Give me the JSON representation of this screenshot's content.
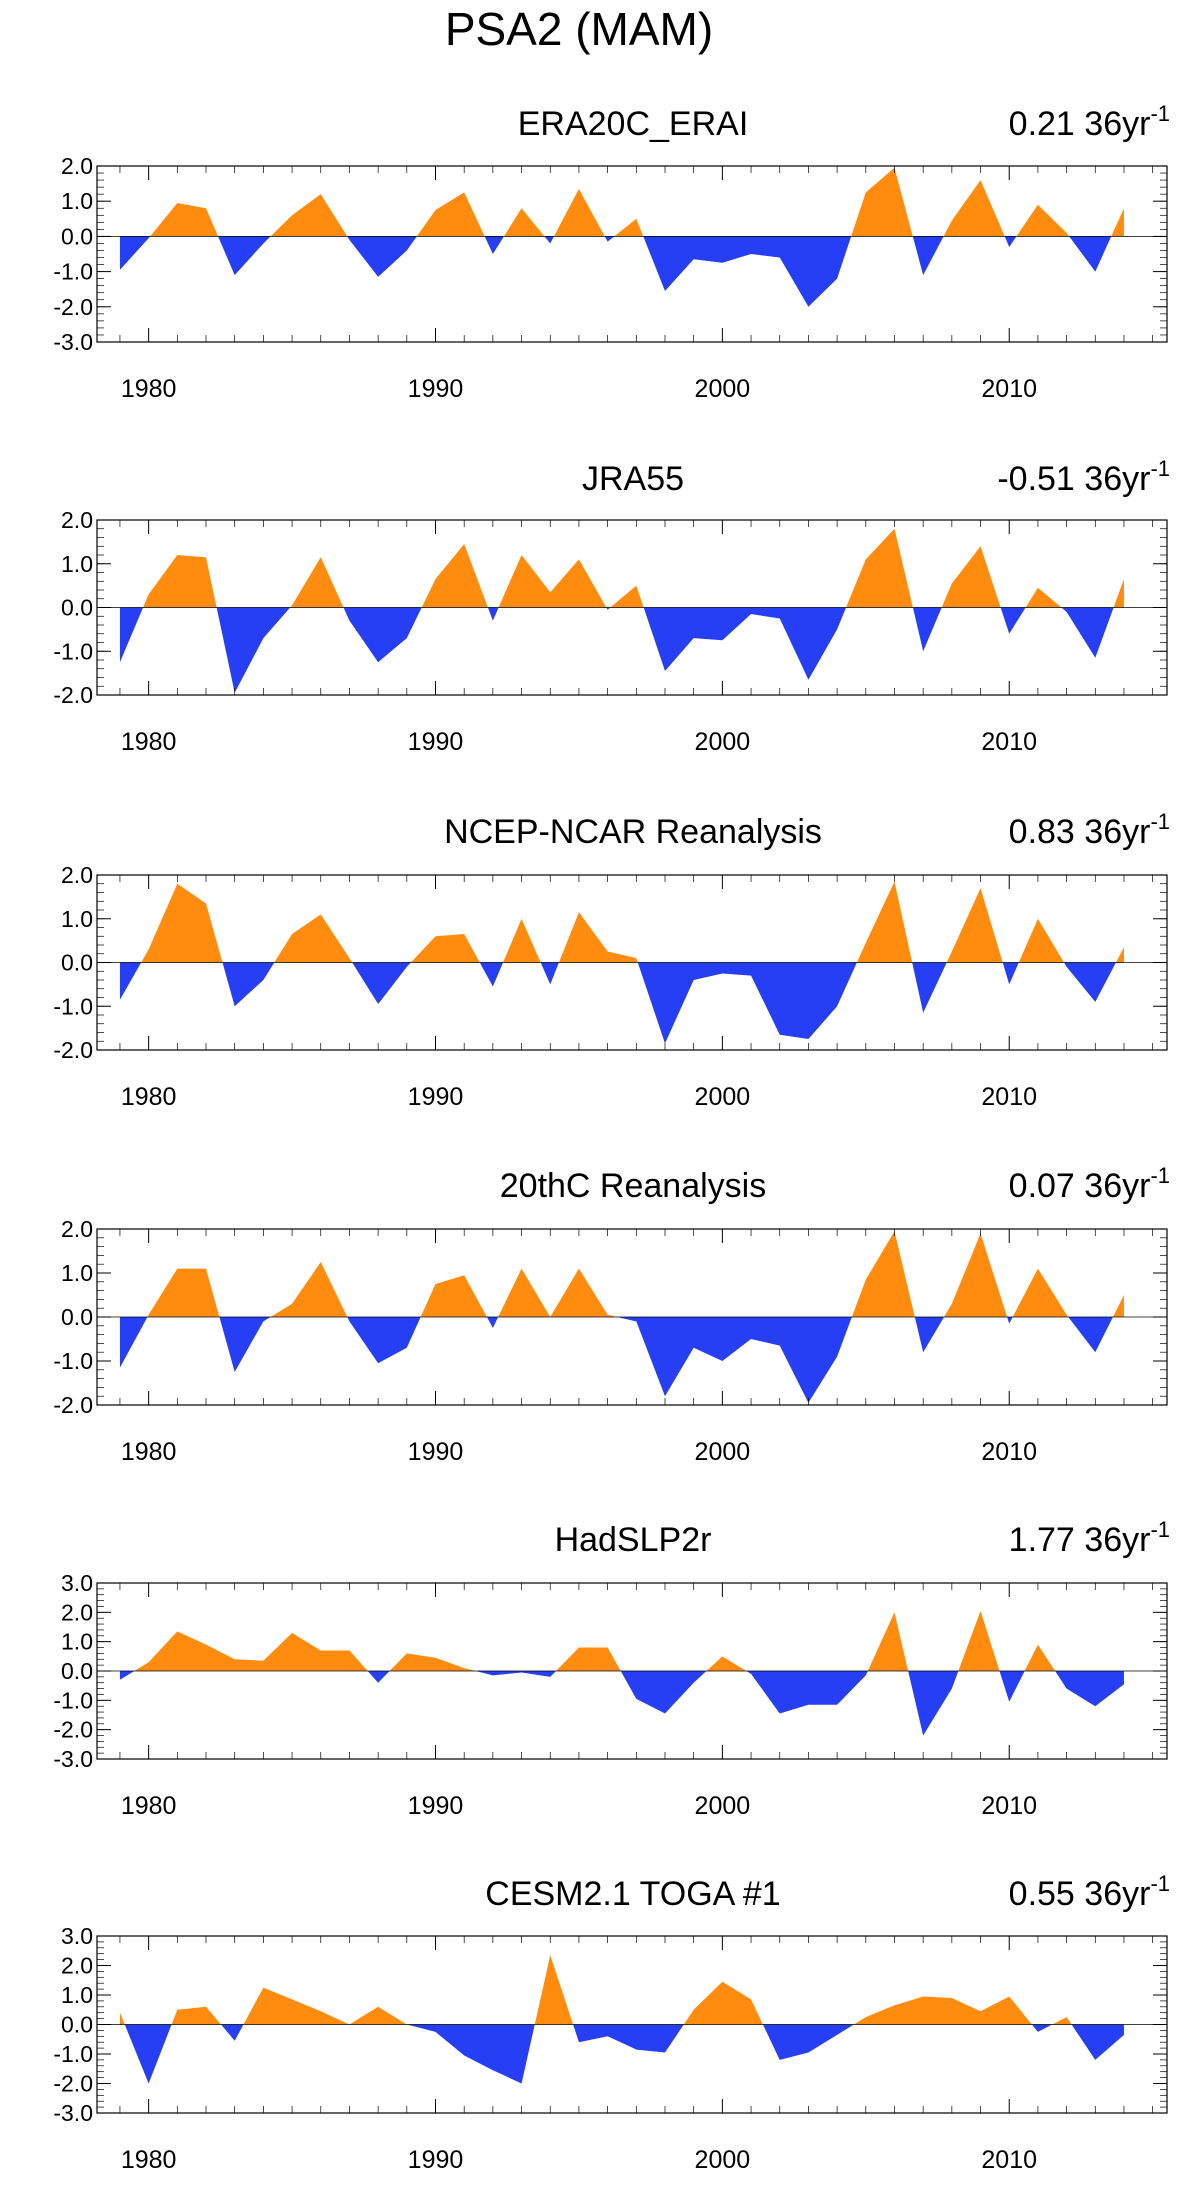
{
  "title": "PSA2 (MAM)",
  "colors": {
    "positive": "#ff8c0f",
    "negative": "#263ff5",
    "axis": "#000000"
  },
  "chart_data": [
    {
      "type": "area",
      "title": "ERA20C_ERAI",
      "trend_value": "0.21 36yr",
      "trend_exponent": "-1",
      "x": [
        1979,
        1980,
        1981,
        1982,
        1983,
        1984,
        1985,
        1986,
        1987,
        1988,
        1989,
        1990,
        1991,
        1992,
        1993,
        1994,
        1995,
        1996,
        1997,
        1998,
        1999,
        2000,
        2001,
        2002,
        2003,
        2004,
        2005,
        2006,
        2007,
        2008,
        2009,
        2010,
        2011,
        2012,
        2013,
        2014
      ],
      "values": [
        -0.95,
        -0.05,
        0.95,
        0.8,
        -1.1,
        -0.2,
        0.6,
        1.2,
        -0.1,
        -1.15,
        -0.4,
        0.75,
        1.25,
        -0.5,
        0.8,
        -0.2,
        1.35,
        -0.15,
        0.5,
        -1.55,
        -0.65,
        -0.75,
        -0.5,
        -0.6,
        -2.0,
        -1.2,
        1.25,
        1.95,
        -1.1,
        0.45,
        1.6,
        -0.3,
        0.9,
        0.1,
        -1.0,
        0.8
      ],
      "ylim": [
        -3,
        2
      ],
      "yticks": [
        "2.0",
        "1.0",
        "0.0",
        "-1.0",
        "-2.0",
        "-3.0"
      ],
      "xticks": [
        "1980",
        "1990",
        "2000",
        "2010"
      ]
    },
    {
      "type": "area",
      "title": "JRA55",
      "trend_value": "-0.51 36yr",
      "trend_exponent": "-1",
      "x": [
        1979,
        1980,
        1981,
        1982,
        1983,
        1984,
        1985,
        1986,
        1987,
        1988,
        1989,
        1990,
        1991,
        1992,
        1993,
        1994,
        1995,
        1996,
        1997,
        1998,
        1999,
        2000,
        2001,
        2002,
        2003,
        2004,
        2005,
        2006,
        2007,
        2008,
        2009,
        2010,
        2011,
        2012,
        2013,
        2014
      ],
      "values": [
        -1.25,
        0.3,
        1.2,
        1.15,
        -1.95,
        -0.7,
        0.05,
        1.15,
        -0.3,
        -1.25,
        -0.7,
        0.65,
        1.45,
        -0.3,
        1.2,
        0.35,
        1.1,
        -0.05,
        0.5,
        -1.45,
        -0.7,
        -0.75,
        -0.15,
        -0.25,
        -1.65,
        -0.5,
        1.1,
        1.8,
        -1.0,
        0.55,
        1.4,
        -0.6,
        0.45,
        -0.1,
        -1.15,
        0.65
      ],
      "ylim": [
        -2,
        2
      ],
      "yticks": [
        "2.0",
        "1.0",
        "0.0",
        "-1.0",
        "-2.0"
      ],
      "xticks": [
        "1980",
        "1990",
        "2000",
        "2010"
      ]
    },
    {
      "type": "area",
      "title": "NCEP-NCAR Reanalysis",
      "trend_value": "0.83 36yr",
      "trend_exponent": "-1",
      "x": [
        1979,
        1980,
        1981,
        1982,
        1983,
        1984,
        1985,
        1986,
        1987,
        1988,
        1989,
        1990,
        1991,
        1992,
        1993,
        1994,
        1995,
        1996,
        1997,
        1998,
        1999,
        2000,
        2001,
        2002,
        2003,
        2004,
        2005,
        2006,
        2007,
        2008,
        2009,
        2010,
        2011,
        2012,
        2013,
        2014
      ],
      "values": [
        -0.85,
        0.3,
        1.8,
        1.35,
        -1.0,
        -0.4,
        0.65,
        1.1,
        0.1,
        -0.95,
        -0.1,
        0.6,
        0.65,
        -0.55,
        1.0,
        -0.5,
        1.15,
        0.25,
        0.1,
        -1.85,
        -0.4,
        -0.25,
        -0.3,
        -1.65,
        -1.75,
        -1.0,
        0.45,
        1.85,
        -1.15,
        0.25,
        1.7,
        -0.5,
        1.0,
        -0.1,
        -0.9,
        0.35
      ],
      "ylim": [
        -2,
        2
      ],
      "yticks": [
        "2.0",
        "1.0",
        "0.0",
        "-1.0",
        "-2.0"
      ],
      "xticks": [
        "1980",
        "1990",
        "2000",
        "2010"
      ]
    },
    {
      "type": "area",
      "title": "20thC Reanalysis",
      "trend_value": "0.07 36yr",
      "trend_exponent": "-1",
      "x": [
        1979,
        1980,
        1981,
        1982,
        1983,
        1984,
        1985,
        1986,
        1987,
        1988,
        1989,
        1990,
        1991,
        1992,
        1993,
        1994,
        1995,
        1996,
        1997,
        1998,
        1999,
        2000,
        2001,
        2002,
        2003,
        2004,
        2005,
        2006,
        2007,
        2008,
        2009,
        2010,
        2011,
        2012,
        2013,
        2014
      ],
      "values": [
        -1.15,
        0.05,
        1.1,
        1.1,
        -1.25,
        -0.1,
        0.3,
        1.25,
        -0.1,
        -1.05,
        -0.7,
        0.75,
        0.95,
        -0.25,
        1.1,
        0.0,
        1.1,
        0.05,
        -0.1,
        -1.8,
        -0.7,
        -1.0,
        -0.5,
        -0.65,
        -1.95,
        -0.9,
        0.85,
        1.95,
        -0.8,
        0.3,
        1.9,
        -0.15,
        1.1,
        0.05,
        -0.8,
        0.5
      ],
      "ylim": [
        -2,
        2
      ],
      "yticks": [
        "2.0",
        "1.0",
        "0.0",
        "-1.0",
        "-2.0"
      ],
      "xticks": [
        "1980",
        "1990",
        "2000",
        "2010"
      ]
    },
    {
      "type": "area",
      "title": "HadSLP2r",
      "trend_value": "1.77 36yr",
      "trend_exponent": "-1",
      "x": [
        1979,
        1980,
        1981,
        1982,
        1983,
        1984,
        1985,
        1986,
        1987,
        1988,
        1989,
        1990,
        1991,
        1992,
        1993,
        1994,
        1995,
        1996,
        1997,
        1998,
        1999,
        2000,
        2001,
        2002,
        2003,
        2004,
        2005,
        2006,
        2007,
        2008,
        2009,
        2010,
        2011,
        2012,
        2013,
        2014
      ],
      "values": [
        -0.3,
        0.3,
        1.35,
        0.9,
        0.4,
        0.35,
        1.3,
        0.7,
        0.7,
        -0.4,
        0.6,
        0.45,
        0.1,
        -0.15,
        -0.05,
        -0.2,
        0.8,
        0.8,
        -0.95,
        -1.45,
        -0.4,
        0.5,
        -0.1,
        -1.45,
        -1.15,
        -1.15,
        -0.15,
        2.0,
        -2.2,
        -0.6,
        2.05,
        -1.05,
        0.9,
        -0.6,
        -1.2,
        -0.45
      ],
      "ylim": [
        -3,
        3
      ],
      "yticks": [
        "3.0",
        "2.0",
        "1.0",
        "0.0",
        "-1.0",
        "-2.0",
        "-3.0"
      ],
      "xticks": [
        "1980",
        "1990",
        "2000",
        "2010"
      ]
    },
    {
      "type": "area",
      "title": "CESM2.1 TOGA #1",
      "trend_value": "0.55 36yr",
      "trend_exponent": "-1",
      "x": [
        1979,
        1980,
        1981,
        1982,
        1983,
        1984,
        1985,
        1986,
        1987,
        1988,
        1989,
        1990,
        1991,
        1992,
        1993,
        1994,
        1995,
        1996,
        1997,
        1998,
        1999,
        2000,
        2001,
        2002,
        2003,
        2004,
        2005,
        2006,
        2007,
        2008,
        2009,
        2010,
        2011,
        2012,
        2013,
        2014
      ],
      "values": [
        0.4,
        -2.0,
        0.5,
        0.6,
        -0.55,
        1.25,
        0.85,
        0.45,
        0.0,
        0.6,
        0.0,
        -0.25,
        -1.05,
        -1.55,
        -2.0,
        2.35,
        -0.6,
        -0.4,
        -0.85,
        -0.95,
        0.5,
        1.45,
        0.85,
        -1.2,
        -0.95,
        -0.35,
        0.25,
        0.65,
        0.95,
        0.9,
        0.45,
        0.95,
        -0.25,
        0.25,
        -1.2,
        -0.35
      ],
      "ylim": [
        -3,
        3
      ],
      "yticks": [
        "3.0",
        "2.0",
        "1.0",
        "0.0",
        "-1.0",
        "-2.0",
        "-3.0"
      ],
      "xticks": [
        "1980",
        "1990",
        "2000",
        "2010"
      ]
    }
  ]
}
